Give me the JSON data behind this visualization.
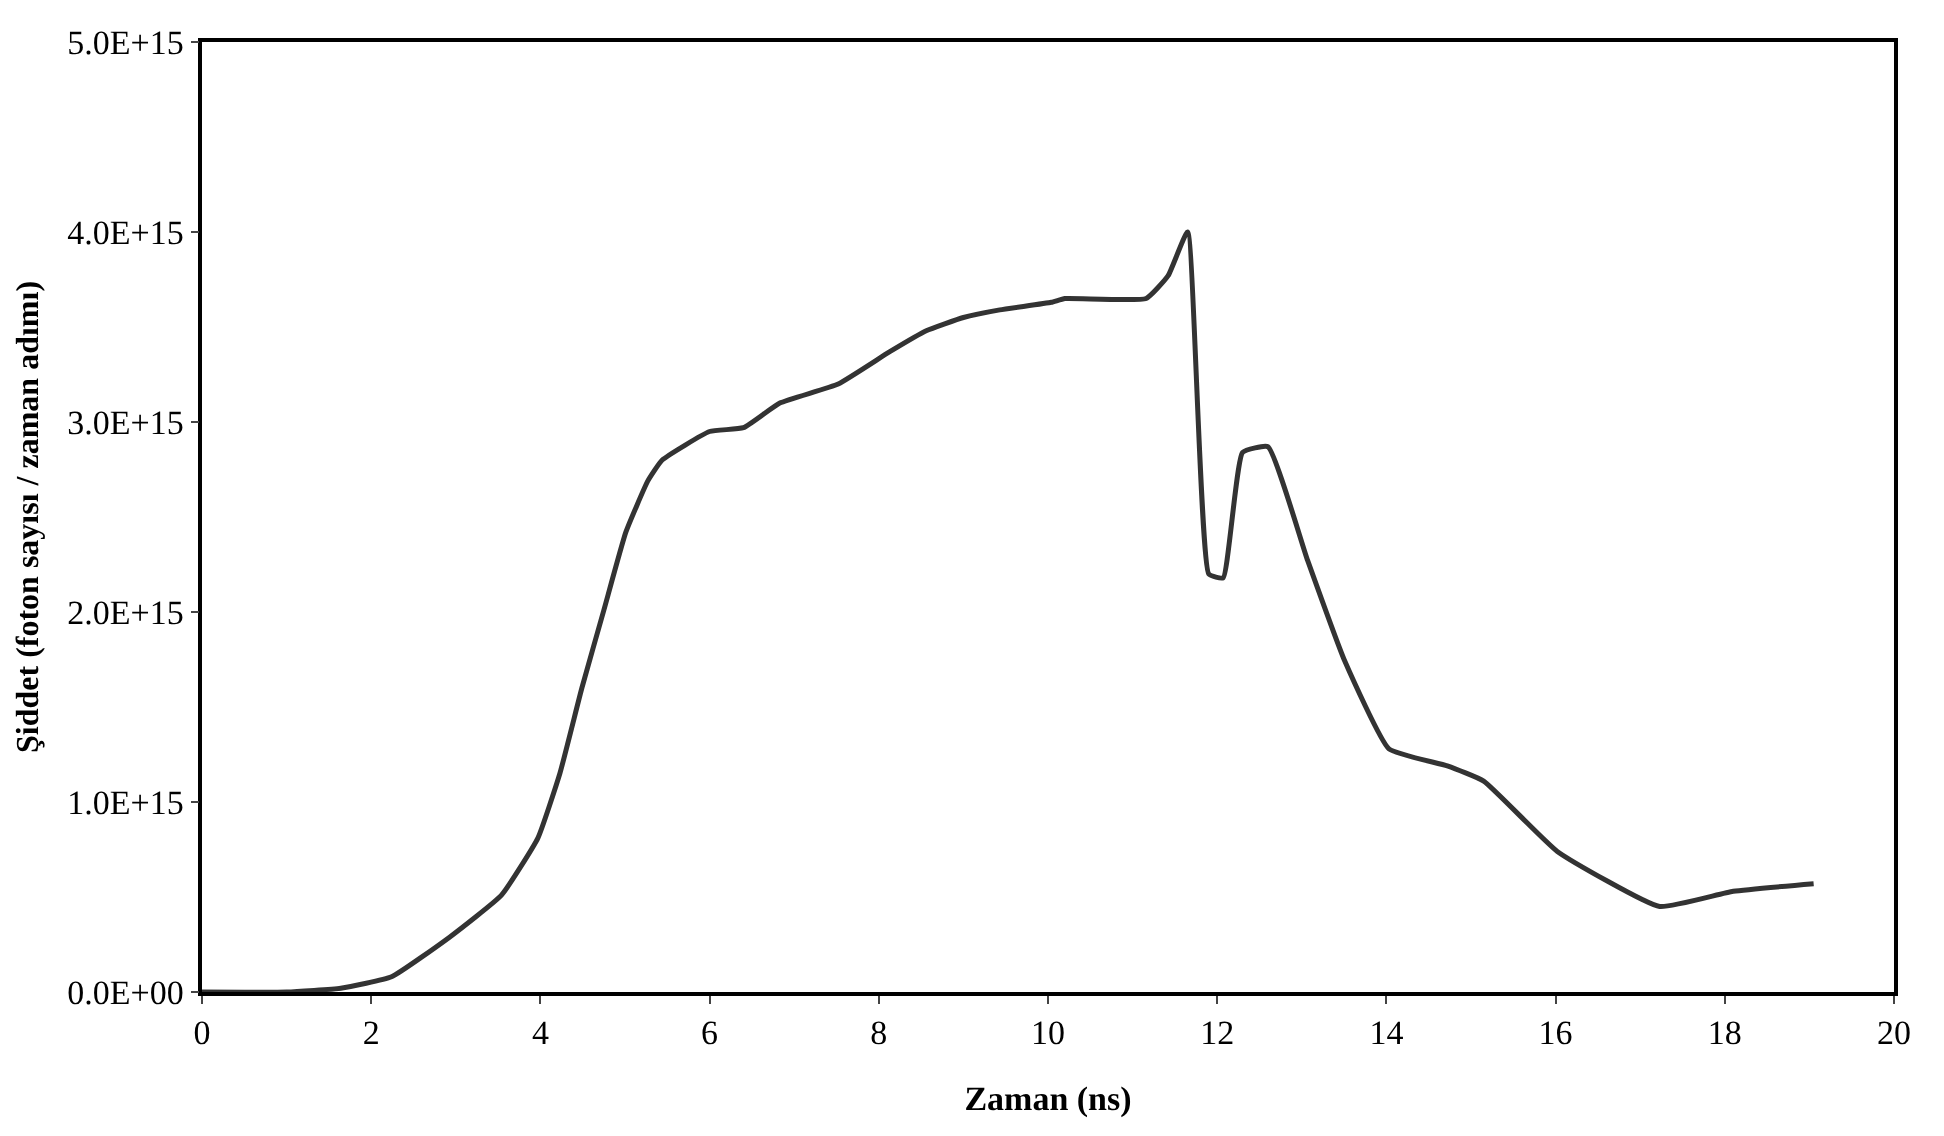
{
  "chart_data": {
    "type": "line",
    "xlabel": "Zaman (ns)",
    "ylabel": "Şiddet (foton sayısı / zaman adımı)",
    "x": [
      0,
      1.0,
      1.64,
      2.24,
      2.93,
      3.54,
      3.97,
      4.23,
      4.49,
      4.75,
      5.01,
      5.27,
      5.44,
      6.0,
      6.4,
      6.83,
      7.52,
      8.13,
      8.56,
      9.0,
      9.43,
      10.04,
      10.2,
      11.16,
      11.42,
      11.65,
      11.9,
      12.07,
      12.3,
      12.6,
      13.07,
      13.5,
      14.03,
      14.72,
      15.15,
      16.02,
      17.23,
      18.1,
      19.05
    ],
    "series": [
      {
        "color": "#333333",
        "values": [
          0,
          0,
          20000000000000.0,
          80000000000000.0,
          290000000000000.0,
          510000000000000.0,
          810000000000000.0,
          1150000000000000.0,
          1600000000000000.0,
          2010000000000000.0,
          2420000000000000.0,
          2690000000000000.0,
          2800000000000000.0,
          2950000000000000.0,
          2970000000000000.0,
          3100000000000000.0,
          3200000000000000.0,
          3370000000000000.0,
          3480000000000000.0,
          3550000000000000.0,
          3590000000000000.0,
          3630000000000000.0,
          3650000000000000.0,
          3650000000000000.0,
          3770000000000000.0,
          4000000000000000.0,
          2200000000000000.0,
          2180000000000000.0,
          2840000000000000.0,
          2870000000000000.0,
          2270000000000000.0,
          1750000000000000.0,
          1280000000000000.0,
          1190000000000000.0,
          1110000000000000.0,
          740000000000000.0,
          450000000000000.0,
          530000000000000.0,
          570000000000000.0
        ]
      }
    ],
    "xlim": [
      0,
      20
    ],
    "xticks": [
      0,
      2,
      4,
      6,
      8,
      10,
      12,
      14,
      16,
      18,
      20
    ],
    "ylim": [
      0,
      5000000000000000.0
    ],
    "yticks": [
      {
        "value": 0,
        "label": "0.0E+00"
      },
      {
        "value": 1000000000000000.0,
        "label": "1.0E+15"
      },
      {
        "value": 2000000000000000.0,
        "label": "2.0E+15"
      },
      {
        "value": 3000000000000000.0,
        "label": "3.0E+15"
      },
      {
        "value": 4000000000000000.0,
        "label": "4.0E+15"
      },
      {
        "value": 5000000000000000.0,
        "label": "5.0E+15"
      }
    ],
    "marker": "none",
    "line_style": "solid"
  }
}
